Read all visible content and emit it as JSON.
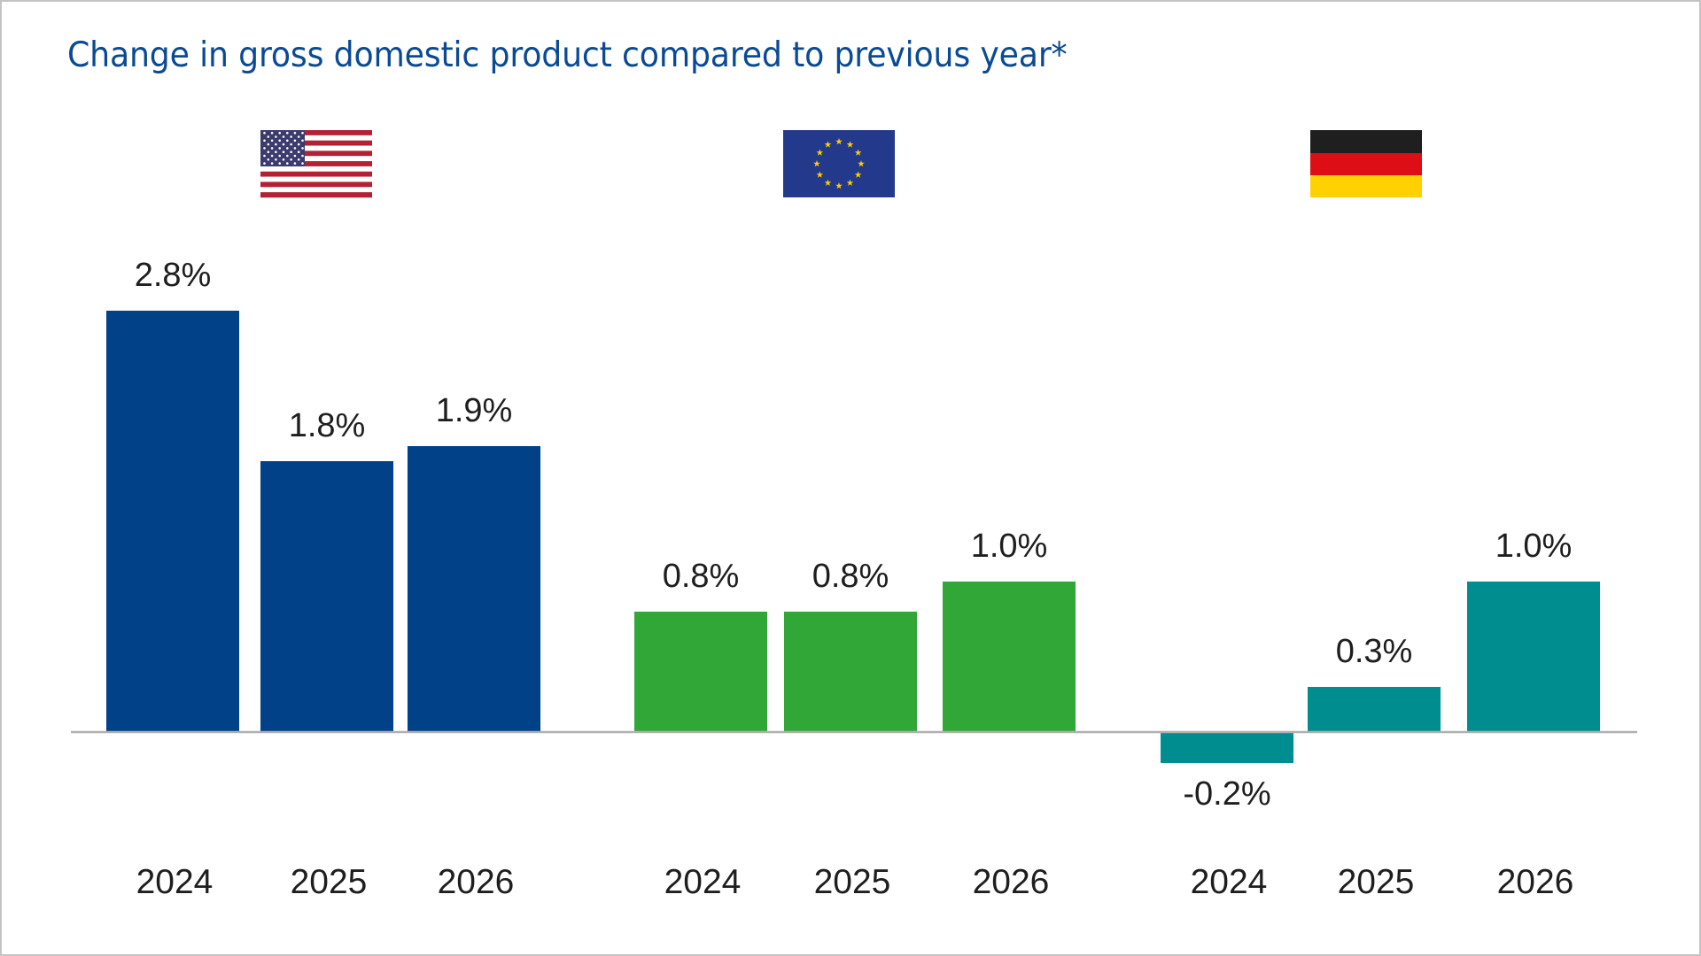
{
  "title": "Change in gross domestic product compared to previous year*",
  "colors": {
    "title": "#0a4a95",
    "text": "#1e1e1e",
    "baseline": "#b0b0b0",
    "frame": "#c4c4c4"
  },
  "chart_data": {
    "type": "bar",
    "title": "Change in gross domestic product compared to previous year*",
    "xlabel": "",
    "ylabel": "",
    "unit": "%",
    "grid": false,
    "legend": "flags above each group",
    "ylim": [
      -0.2,
      2.8
    ],
    "groups": [
      {
        "name": "United States",
        "flag": "us-flag",
        "color": "#004187",
        "categories": [
          "2024",
          "2025",
          "2026"
        ],
        "values": [
          2.8,
          1.8,
          1.9
        ],
        "labels": [
          "2.8%",
          "1.8%",
          "1.9%"
        ]
      },
      {
        "name": "European Union",
        "flag": "eu-flag",
        "color": "#31a737",
        "categories": [
          "2024",
          "2025",
          "2026"
        ],
        "values": [
          0.8,
          0.8,
          1.0
        ],
        "labels": [
          "0.8%",
          "0.8%",
          "1.0%"
        ]
      },
      {
        "name": "Germany",
        "flag": "de-flag",
        "color": "#008d8f",
        "categories": [
          "2024",
          "2025",
          "2026"
        ],
        "values": [
          -0.2,
          0.3,
          1.0
        ],
        "labels": [
          "-0.2%",
          "0.3%",
          "1.0%"
        ]
      }
    ]
  }
}
